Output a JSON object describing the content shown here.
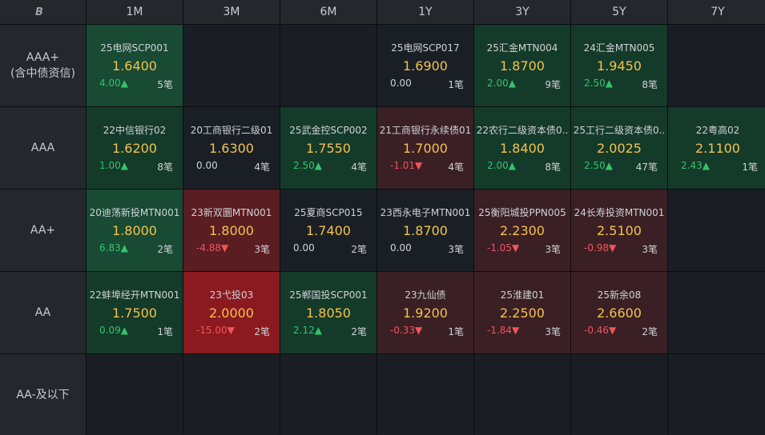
{
  "logo": "B",
  "tenors": [
    "1M",
    "3M",
    "6M",
    "1Y",
    "3Y",
    "5Y",
    "7Y"
  ],
  "ratings": [
    {
      "line1": "AAA+",
      "line2": "(含中债资信)"
    },
    {
      "line1": "AAA",
      "line2": ""
    },
    {
      "line1": "AA+",
      "line2": ""
    },
    {
      "line1": "AA",
      "line2": ""
    },
    {
      "line1": "AA-及以下",
      "line2": ""
    }
  ],
  "cells": [
    [
      {
        "bond": "25电网SCP001",
        "yield": "1.6400",
        "change": "4.00▲",
        "count": "5笔",
        "dir": "up",
        "tone": "g2"
      },
      null,
      null,
      {
        "bond": "25电网SCP017",
        "yield": "1.6900",
        "change": "0.00",
        "count": "1笔",
        "dir": "flat",
        "tone": "neutral"
      },
      {
        "bond": "25汇金MTN004",
        "yield": "1.8700",
        "change": "2.00▲",
        "count": "9笔",
        "dir": "up",
        "tone": "g1"
      },
      {
        "bond": "24汇金MTN005",
        "yield": "1.9450",
        "change": "2.50▲",
        "count": "8笔",
        "dir": "up",
        "tone": "g1"
      },
      null
    ],
    [
      {
        "bond": "22中信银行02",
        "yield": "1.6200",
        "change": "1.00▲",
        "count": "8笔",
        "dir": "up",
        "tone": "g1"
      },
      {
        "bond": "20工商银行二级01",
        "yield": "1.6300",
        "change": "0.00",
        "count": "4笔",
        "dir": "flat",
        "tone": "neutral"
      },
      {
        "bond": "25武金控SCP002",
        "yield": "1.7550",
        "change": "2.50▲",
        "count": "4笔",
        "dir": "up",
        "tone": "g1"
      },
      {
        "bond": "21工商银行永续债01",
        "yield": "1.7000",
        "change": "-1.01▼",
        "count": "4笔",
        "dir": "down",
        "tone": "r1"
      },
      {
        "bond": "22农行二级资本债0..",
        "yield": "1.8400",
        "change": "2.00▲",
        "count": "8笔",
        "dir": "up",
        "tone": "g1"
      },
      {
        "bond": "25工行二级资本债0..",
        "yield": "2.0025",
        "change": "2.50▲",
        "count": "47笔",
        "dir": "up",
        "tone": "g1"
      },
      {
        "bond": "22粤高02",
        "yield": "2.1100",
        "change": "2.43▲",
        "count": "1笔",
        "dir": "up",
        "tone": "g1"
      }
    ],
    [
      {
        "bond": "20迪荡新投MTN001",
        "yield": "1.8000",
        "change": "6.83▲",
        "count": "2笔",
        "dir": "up",
        "tone": "g2"
      },
      {
        "bond": "23新双圜MTN001",
        "yield": "1.8000",
        "change": "-4.88▼",
        "count": "3笔",
        "dir": "down",
        "tone": "r2"
      },
      {
        "bond": "25夏商SCP015",
        "yield": "1.7400",
        "change": "0.00",
        "count": "2笔",
        "dir": "flat",
        "tone": "neutral"
      },
      {
        "bond": "23西永电子MTN001",
        "yield": "1.8700",
        "change": "0.00",
        "count": "3笔",
        "dir": "flat",
        "tone": "neutral"
      },
      {
        "bond": "25衡阳城投PPN005",
        "yield": "2.2300",
        "change": "-1.05▼",
        "count": "3笔",
        "dir": "down",
        "tone": "r1"
      },
      {
        "bond": "24长寿投资MTN001",
        "yield": "2.5100",
        "change": "-0.98▼",
        "count": "3笔",
        "dir": "down",
        "tone": "r1"
      },
      null
    ],
    [
      {
        "bond": "22蚌埠经开MTN001",
        "yield": "1.7500",
        "change": "0.09▲",
        "count": "1笔",
        "dir": "up",
        "tone": "g1"
      },
      {
        "bond": "23弋投03",
        "yield": "2.0000",
        "change": "-15.00▼",
        "count": "2笔",
        "dir": "down",
        "tone": "r3"
      },
      {
        "bond": "25郸国投SCP001",
        "yield": "1.8050",
        "change": "2.12▲",
        "count": "2笔",
        "dir": "up",
        "tone": "g1"
      },
      {
        "bond": "23九仙债",
        "yield": "1.9200",
        "change": "-0.33▼",
        "count": "1笔",
        "dir": "down",
        "tone": "r1"
      },
      {
        "bond": "25淮建01",
        "yield": "2.2500",
        "change": "-1.84▼",
        "count": "3笔",
        "dir": "down",
        "tone": "r1"
      },
      {
        "bond": "25新余08",
        "yield": "2.6600",
        "change": "-0.46▼",
        "count": "2笔",
        "dir": "down",
        "tone": "r1"
      },
      null
    ],
    [
      null,
      null,
      null,
      null,
      null,
      null,
      null
    ]
  ]
}
